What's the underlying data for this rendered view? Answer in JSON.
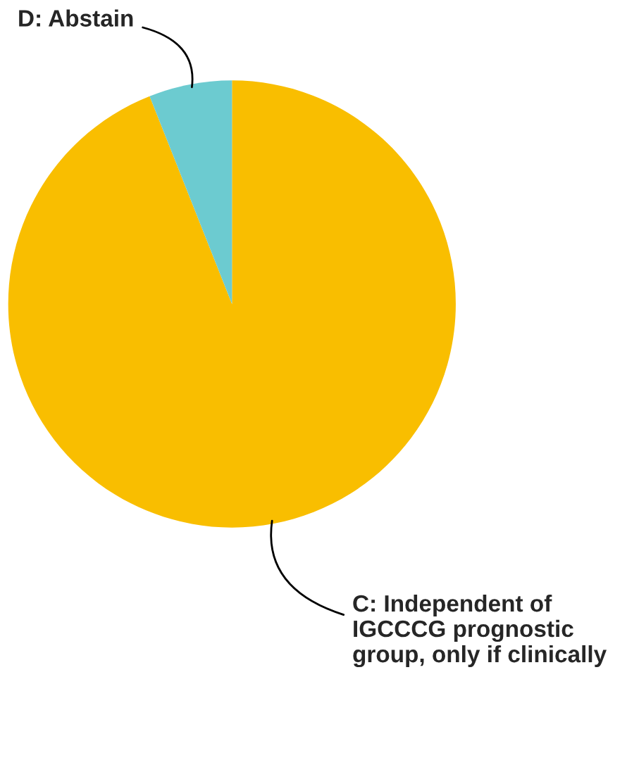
{
  "chart_data": {
    "type": "pie",
    "categories": [
      "C: Independent of IGCCCG prognostic group, only if clinically",
      "D: Abstain"
    ],
    "values": [
      94,
      6
    ],
    "colors": [
      "#f9be00",
      "#6ccbd0"
    ],
    "legend": false
  }
}
